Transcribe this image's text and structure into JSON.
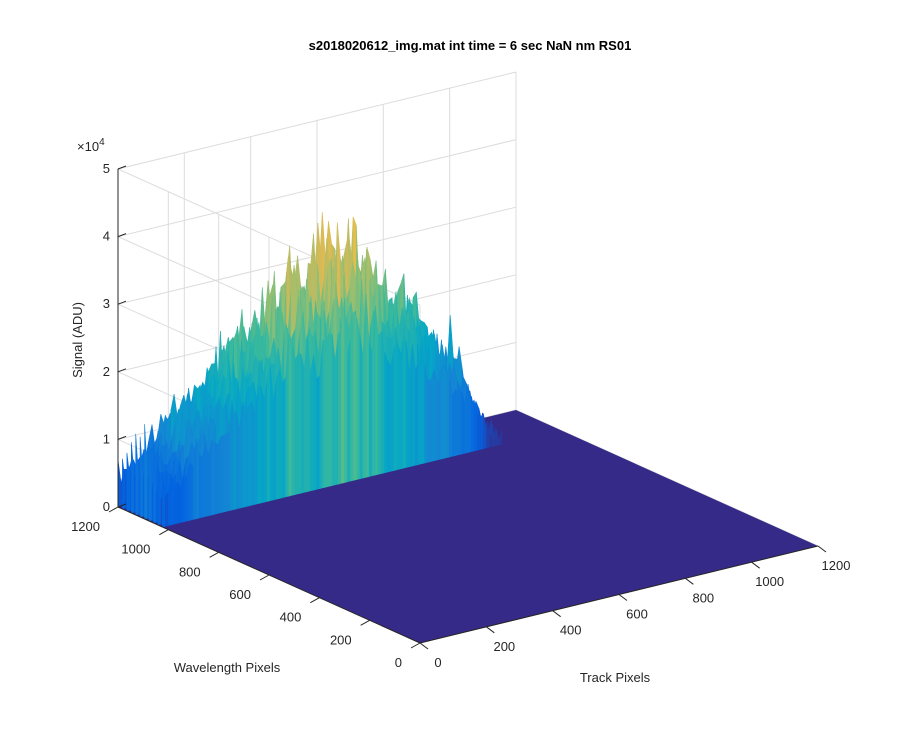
{
  "chart_data": {
    "type": "surface3d",
    "title": "s2018020612_img.mat int time = 6 sec  NaN nm RS01",
    "zlabel": "Signal (ADU)",
    "xlabel": "Track Pixels",
    "ylabel": "Wavelength Pixels",
    "z_exponent_label": "×10",
    "z_exponent_power": "4",
    "x_ticks": [
      "0",
      "200",
      "400",
      "600",
      "800",
      "1000",
      "1200"
    ],
    "y_ticks": [
      "0",
      "200",
      "400",
      "600",
      "800",
      "1000",
      "1200"
    ],
    "z_ticks": [
      "0",
      "1",
      "2",
      "3",
      "4",
      "5"
    ],
    "xlim": [
      0,
      1200
    ],
    "ylim": [
      0,
      1200
    ],
    "zlim": [
      0,
      50000
    ],
    "colormap": [
      "#352a87",
      "#0363e1",
      "#1485d4",
      "#06a7c6",
      "#38b99e",
      "#92bf73",
      "#d9ba56",
      "#fcce2e",
      "#f9fb0e"
    ],
    "signal_region": {
      "track_pixels": [
        0,
        1024
      ],
      "wavelength_pixels": [
        1024,
        1200
      ]
    },
    "peak_signal": 46000,
    "grid": true
  }
}
